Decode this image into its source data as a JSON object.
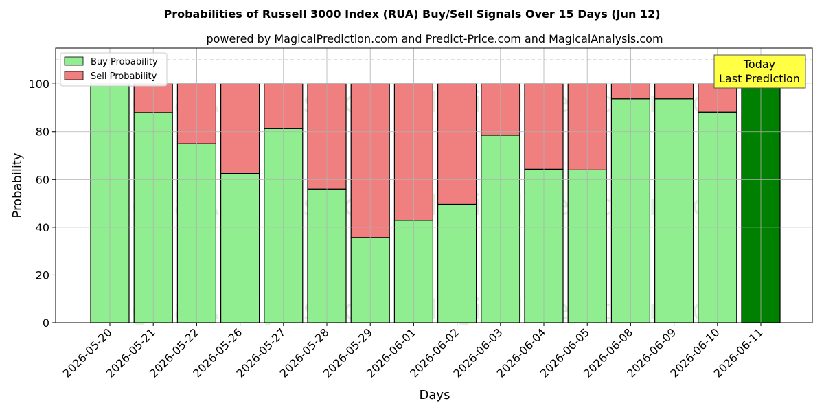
{
  "chart_data": {
    "type": "bar",
    "stacked": true,
    "title": "Probabilities of Russell 3000 Index (RUA) Buy/Sell Signals Over 15 Days (Jun 12)",
    "subtitle": "powered by MagicalPrediction.com and Predict-Price.com and MagicalAnalysis.com",
    "xlabel": "Days",
    "ylabel": "Probability",
    "ylim": [
      0,
      115
    ],
    "yticks": [
      0,
      20,
      40,
      60,
      80,
      100
    ],
    "reference_line": 110,
    "grid": true,
    "legend_placement": "top-left",
    "categories": [
      "2026-05-20",
      "2026-05-21",
      "2026-05-22",
      "2026-05-26",
      "2026-05-27",
      "2026-05-28",
      "2026-05-29",
      "2026-06-01",
      "2026-06-02",
      "2026-06-03",
      "2026-06-04",
      "2026-06-05",
      "2026-06-08",
      "2026-06-09",
      "2026-06-10",
      "2026-06-11"
    ],
    "series": [
      {
        "name": "Buy Probability",
        "color": "#90ee90",
        "values": [
          100,
          88,
          75,
          62.5,
          81.3,
          56,
          35.7,
          42.9,
          49.6,
          78.5,
          64.3,
          64,
          93.8,
          93.8,
          88.2,
          100
        ]
      },
      {
        "name": "Sell Probability",
        "color": "#f08080",
        "values": [
          0,
          12,
          25,
          37.5,
          18.7,
          44,
          64.3,
          57.1,
          50.4,
          21.5,
          35.7,
          36,
          6.2,
          6.2,
          11.8,
          0
        ]
      }
    ],
    "highlight": {
      "category": "2026-06-11",
      "color": "#008000"
    },
    "annotation": {
      "lines": [
        "Today",
        "Last Prediction"
      ],
      "background": "#ffff44"
    },
    "watermarks": [
      "MagicalAnalysis.com",
      "MagicalPrediction.com"
    ]
  }
}
